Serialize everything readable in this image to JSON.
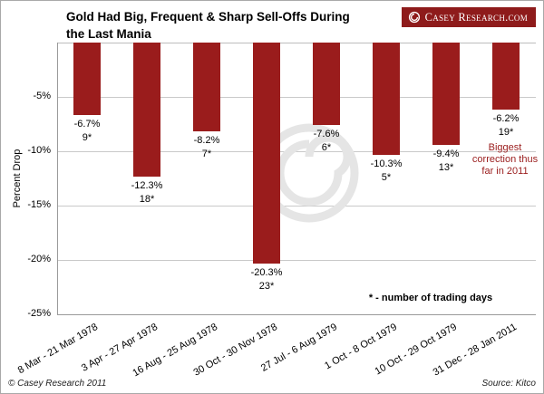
{
  "header": {
    "title_line1": "Gold Had Big, Frequent & Sharp Sell-Offs During",
    "title_line2": "the Last Mania",
    "logo_text": "Casey Research.com"
  },
  "chart_data": {
    "type": "bar",
    "title": "Gold Had Big, Frequent & Sharp Sell-Offs During the Last Mania",
    "xlabel": "",
    "ylabel": "Percent Drop",
    "ylim": [
      -25,
      0
    ],
    "grid": true,
    "legend_position": "none",
    "bar_color": "#9a1c1c",
    "ytick_values": [
      -5,
      -10,
      -15,
      -20,
      -25
    ],
    "ytick_labels": [
      "-5%",
      "-10%",
      "-15%",
      "-20%",
      "-25%"
    ],
    "categories": [
      "8 Mar - 21 Mar 1978",
      "3 Apr - 27 Apr 1978",
      "16 Aug - 25 Aug 1978",
      "30 Oct - 30 Nov 1978",
      "27 Jul - 6 Aug 1979",
      "1 Oct - 8 Oct 1979",
      "10 Oct - 29 Oct 1979",
      "31 Dec - 28 Jan 2011"
    ],
    "values": [
      -6.7,
      -12.3,
      -8.2,
      -20.3,
      -7.6,
      -10.3,
      -9.4,
      -6.2
    ],
    "value_labels": [
      "-6.7%",
      "-12.3%",
      "-8.2%",
      "-20.3%",
      "-7.6%",
      "-10.3%",
      "-9.4%",
      "-6.2%"
    ],
    "trading_days": [
      "9*",
      "18*",
      "7*",
      "23*",
      "6*",
      "5*",
      "13*",
      "19*"
    ],
    "annotation": {
      "bar_index": 7,
      "text": "Biggest correction thus far in 2011"
    },
    "footnote": "* - number of trading days"
  },
  "footer": {
    "copyright": "© Casey Research 2011",
    "source": "Source: Kitco"
  }
}
